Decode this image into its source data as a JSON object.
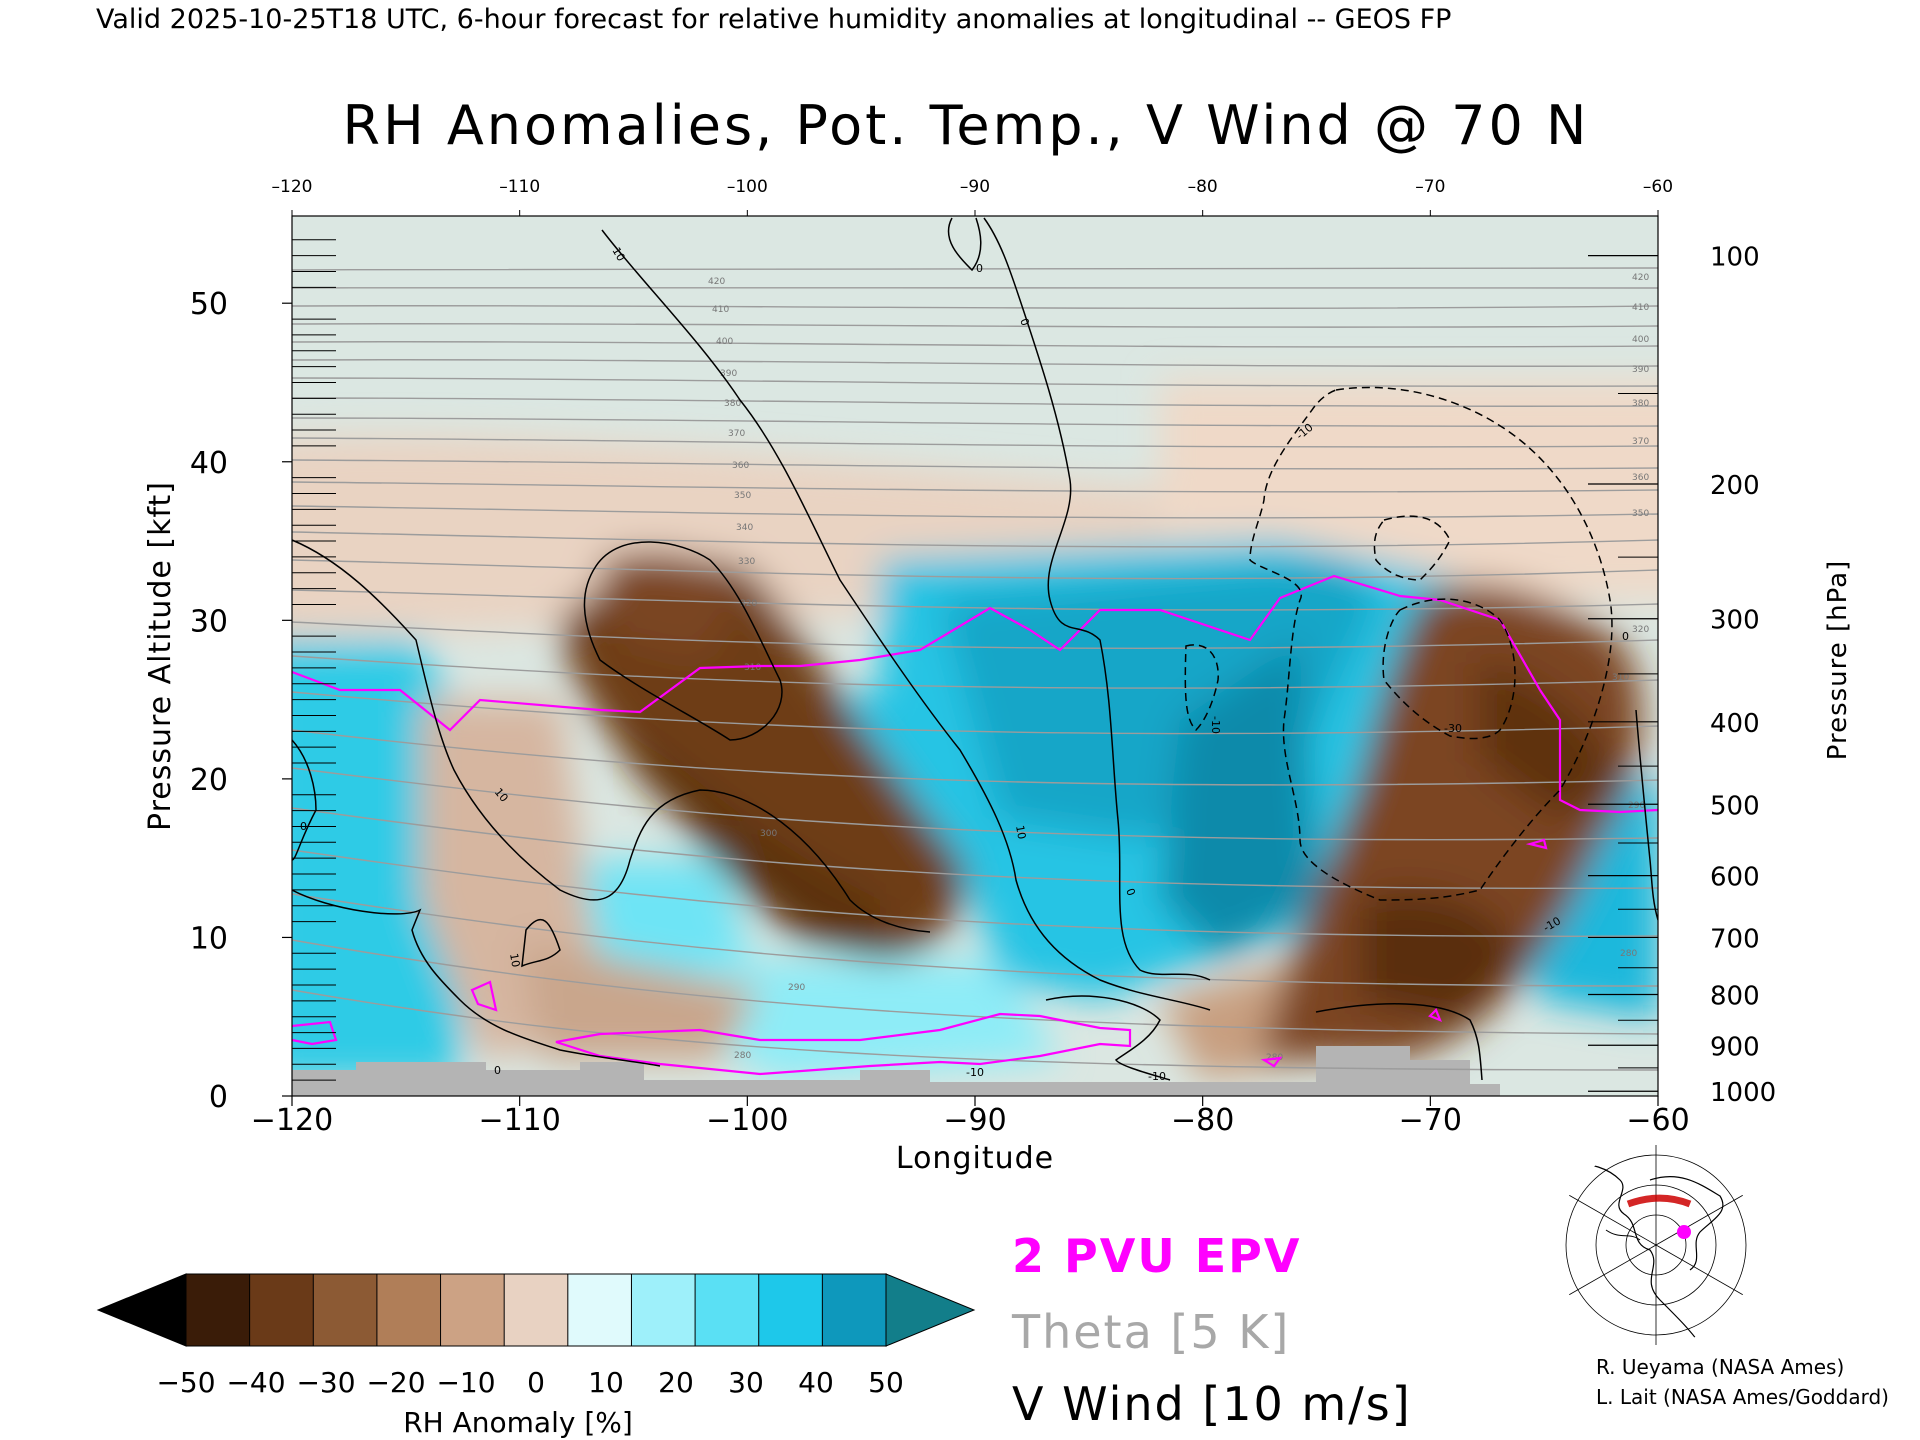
{
  "header": {
    "valid_line": "Valid 2025-10-25T18 UTC, 6-hour forecast for relative humidity anomalies at longitudinal -- GEOS FP"
  },
  "chart_data": {
    "type": "heatmap",
    "title": "RH Anomalies, Pot. Temp., V Wind @ 70 N",
    "xlabel": "Longitude",
    "ylabel": "Pressure Altitude [kft]",
    "ylabel_right": "Pressure [hPa]",
    "xlim": [
      -120,
      -60
    ],
    "ylim": [
      0,
      55.5
    ],
    "x_ticks": [
      -120,
      -110,
      -100,
      -90,
      -80,
      -70,
      -60
    ],
    "x_tick_labels": [
      "−120",
      "−110",
      "−100",
      "−90",
      "−80",
      "−70",
      "−60"
    ],
    "y_ticks": [
      0,
      10,
      20,
      30,
      40,
      50
    ],
    "pressure_ticks": [
      {
        "label": "100",
        "kft": 53.0
      },
      {
        "label": "200",
        "kft": 38.6
      },
      {
        "label": "300",
        "kft": 30.1
      },
      {
        "label": "400",
        "kft": 23.6
      },
      {
        "label": "500",
        "kft": 18.4
      },
      {
        "label": "600",
        "kft": 13.9
      },
      {
        "label": "700",
        "kft": 10.0
      },
      {
        "label": "800",
        "kft": 6.4
      },
      {
        "label": "900",
        "kft": 3.2
      },
      {
        "label": "1000",
        "kft": 0.3
      }
    ],
    "colorbar": {
      "label": "RH Anomaly [%]",
      "ticks": [
        "−50",
        "−40",
        "−30",
        "−20",
        "−10",
        "0",
        "10",
        "20",
        "30",
        "40",
        "50"
      ],
      "colors": [
        "#000000",
        "#3a1c08",
        "#6a3a18",
        "#8c5a34",
        "#b07e58",
        "#cca284",
        "#e8d2c2",
        "#e0fafc",
        "#9ef0fa",
        "#5ae0f4",
        "#1ec8ea",
        "#0e98bc",
        "#127e8a"
      ]
    },
    "theta_levels": [
      280,
      290,
      300,
      310,
      320,
      330,
      340,
      350,
      360,
      370,
      380,
      390,
      400,
      410,
      420
    ],
    "vwind_contours": [
      -30,
      -10,
      0,
      10
    ],
    "legend": [
      {
        "label": "2 PVU EPV",
        "color": "#ff00ff"
      },
      {
        "label": "Theta [5 K]",
        "color": "#a0a0a0"
      },
      {
        "label": "V Wind [10 m/s]",
        "color": "#000000"
      }
    ]
  },
  "credits": {
    "line1": "R. Ueyama (NASA Ames)",
    "line2": "L. Lait (NASA Ames/Goddard)"
  },
  "inset_map": {
    "marker_color": "#ff00ff",
    "track_color": "#cc0000"
  }
}
